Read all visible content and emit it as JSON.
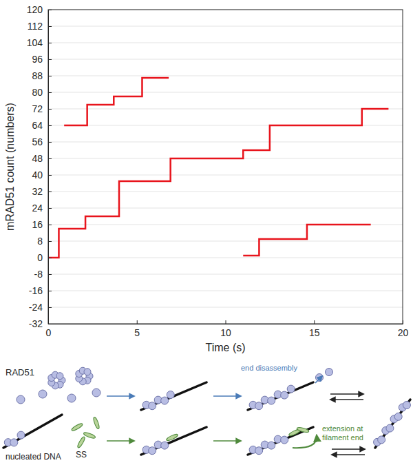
{
  "chart_data": {
    "type": "line",
    "xlabel": "Time (s)",
    "ylabel": "mRAD51 count (numbers)",
    "xlim": [
      0,
      20
    ],
    "ylim": [
      -32,
      120
    ],
    "xticks": [
      0,
      5,
      10,
      15,
      20
    ],
    "yticks": [
      -32,
      -24,
      -16,
      -8,
      0,
      8,
      16,
      24,
      32,
      40,
      48,
      56,
      64,
      72,
      80,
      88,
      96,
      104,
      112,
      120
    ],
    "grid": true,
    "line_style": "step",
    "series": [
      {
        "color": "#e8141c",
        "x": [
          0.9,
          2.2,
          3.7,
          5.3,
          6.8
        ],
        "values": [
          64,
          74,
          78,
          87,
          87
        ]
      },
      {
        "color": "#e8141c",
        "x": [
          0,
          0.6,
          2.1,
          4.0,
          6.9,
          11.0,
          12.5,
          17.7,
          19.2
        ],
        "values": [
          0,
          14,
          20,
          37,
          48,
          52,
          64,
          72,
          72
        ]
      },
      {
        "color": "#e8141c",
        "x": [
          11.0,
          11.9,
          14.6,
          18.2
        ],
        "values": [
          1,
          9,
          16,
          16
        ]
      }
    ]
  },
  "diagram": {
    "labels": {
      "rad51": "RAD51",
      "nucleated_dna": "nucleated DNA",
      "ss": "SS",
      "end_disassembly": "end disassembly",
      "extension": "extension at filament end"
    }
  }
}
